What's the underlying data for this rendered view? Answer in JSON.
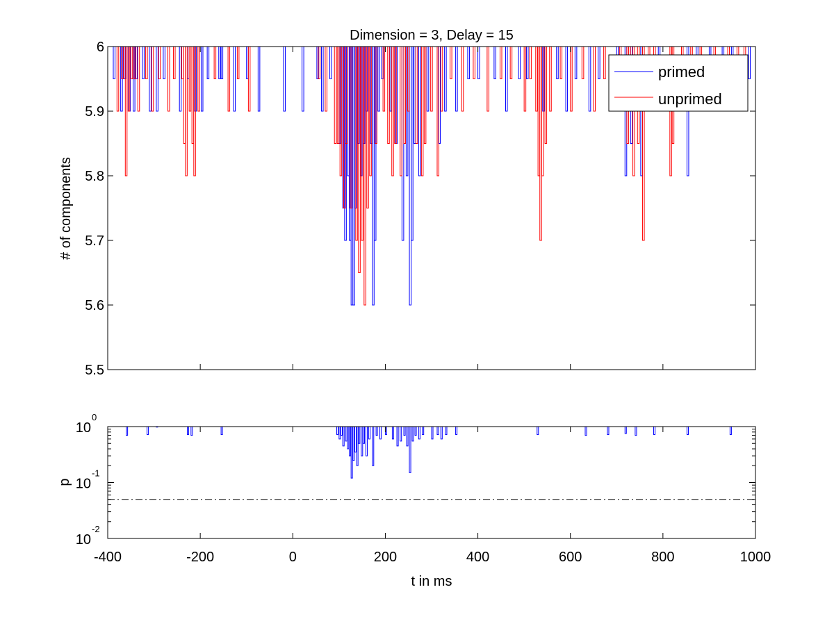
{
  "chart_data": [
    {
      "type": "line",
      "title": "Dimension  = 3, Delay = 15",
      "xlabel": "",
      "ylabel": "# of components",
      "xlim": [
        -400,
        1000
      ],
      "ylim": [
        5.5,
        6
      ],
      "yticks": [
        "5.5",
        "5.6",
        "5.7",
        "5.8",
        "5.9",
        "6"
      ],
      "legend": {
        "placement": "top-right",
        "entries": [
          "primed",
          "unprimed"
        ]
      },
      "grid": false,
      "series": [
        {
          "name": "primed",
          "color": "#0000ff",
          "style": "staircase",
          "base": 6,
          "dips": [
            {
              "x": -388,
              "y": 5.95
            },
            {
              "x": -372,
              "y": 5.9
            },
            {
              "x": -365,
              "y": 5.95
            },
            {
              "x": -355,
              "y": 5.9
            },
            {
              "x": -345,
              "y": 5.9
            },
            {
              "x": -340,
              "y": 5.95
            },
            {
              "x": -325,
              "y": 5.95
            },
            {
              "x": -310,
              "y": 5.9
            },
            {
              "x": -295,
              "y": 5.9
            },
            {
              "x": -280,
              "y": 5.95
            },
            {
              "x": -245,
              "y": 5.9
            },
            {
              "x": -228,
              "y": 5.95
            },
            {
              "x": -212,
              "y": 5.9
            },
            {
              "x": -198,
              "y": 5.9
            },
            {
              "x": -185,
              "y": 5.95
            },
            {
              "x": -160,
              "y": 5.95
            },
            {
              "x": -155,
              "y": 5.95
            },
            {
              "x": -128,
              "y": 5.9
            },
            {
              "x": -100,
              "y": 5.95
            },
            {
              "x": -75,
              "y": 5.9
            },
            {
              "x": -20,
              "y": 5.9
            },
            {
              "x": 20,
              "y": 5.9
            },
            {
              "x": 52,
              "y": 5.95
            },
            {
              "x": 62,
              "y": 5.9
            },
            {
              "x": 80,
              "y": 5.95
            },
            {
              "x": 100,
              "y": 5.85
            },
            {
              "x": 108,
              "y": 5.75
            },
            {
              "x": 112,
              "y": 5.7
            },
            {
              "x": 118,
              "y": 5.8
            },
            {
              "x": 122,
              "y": 5.7
            },
            {
              "x": 126,
              "y": 5.6
            },
            {
              "x": 130,
              "y": 5.6
            },
            {
              "x": 134,
              "y": 5.75
            },
            {
              "x": 140,
              "y": 5.85
            },
            {
              "x": 146,
              "y": 5.8
            },
            {
              "x": 152,
              "y": 5.85
            },
            {
              "x": 158,
              "y": 5.9
            },
            {
              "x": 168,
              "y": 5.85
            },
            {
              "x": 172,
              "y": 5.6
            },
            {
              "x": 176,
              "y": 5.7
            },
            {
              "x": 184,
              "y": 5.9
            },
            {
              "x": 192,
              "y": 5.95
            },
            {
              "x": 210,
              "y": 5.9
            },
            {
              "x": 222,
              "y": 5.85
            },
            {
              "x": 236,
              "y": 5.7
            },
            {
              "x": 245,
              "y": 5.8
            },
            {
              "x": 252,
              "y": 5.6
            },
            {
              "x": 256,
              "y": 5.7
            },
            {
              "x": 262,
              "y": 5.85
            },
            {
              "x": 272,
              "y": 5.8
            },
            {
              "x": 290,
              "y": 5.9
            },
            {
              "x": 315,
              "y": 5.85
            },
            {
              "x": 328,
              "y": 5.9
            },
            {
              "x": 352,
              "y": 5.9
            },
            {
              "x": 378,
              "y": 5.95
            },
            {
              "x": 400,
              "y": 5.95
            },
            {
              "x": 435,
              "y": 5.95
            },
            {
              "x": 460,
              "y": 5.9
            },
            {
              "x": 488,
              "y": 5.95
            },
            {
              "x": 505,
              "y": 5.95
            },
            {
              "x": 540,
              "y": 5.9
            },
            {
              "x": 570,
              "y": 5.95
            },
            {
              "x": 590,
              "y": 5.9
            },
            {
              "x": 610,
              "y": 5.95
            },
            {
              "x": 640,
              "y": 5.9
            },
            {
              "x": 660,
              "y": 5.95
            },
            {
              "x": 700,
              "y": 5.9
            },
            {
              "x": 718,
              "y": 5.8
            },
            {
              "x": 730,
              "y": 5.85
            },
            {
              "x": 752,
              "y": 5.8
            },
            {
              "x": 790,
              "y": 5.95
            },
            {
              "x": 852,
              "y": 5.8
            },
            {
              "x": 872,
              "y": 5.95
            },
            {
              "x": 900,
              "y": 5.95
            },
            {
              "x": 928,
              "y": 5.95
            },
            {
              "x": 948,
              "y": 5.95
            },
            {
              "x": 985,
              "y": 5.95
            }
          ]
        },
        {
          "name": "unprimed",
          "color": "#ff0000",
          "style": "staircase",
          "base": 6,
          "dips": [
            {
              "x": -380,
              "y": 5.9
            },
            {
              "x": -370,
              "y": 5.95
            },
            {
              "x": -362,
              "y": 5.8
            },
            {
              "x": -356,
              "y": 5.9
            },
            {
              "x": -350,
              "y": 5.95
            },
            {
              "x": -343,
              "y": 5.95
            },
            {
              "x": -335,
              "y": 5.9
            },
            {
              "x": -318,
              "y": 5.95
            },
            {
              "x": -305,
              "y": 5.9
            },
            {
              "x": -290,
              "y": 5.95
            },
            {
              "x": -270,
              "y": 5.9
            },
            {
              "x": -258,
              "y": 5.95
            },
            {
              "x": -240,
              "y": 5.95
            },
            {
              "x": -236,
              "y": 5.85
            },
            {
              "x": -232,
              "y": 5.8
            },
            {
              "x": -224,
              "y": 5.9
            },
            {
              "x": -218,
              "y": 5.85
            },
            {
              "x": -214,
              "y": 5.8
            },
            {
              "x": -205,
              "y": 5.9
            },
            {
              "x": -170,
              "y": 5.95
            },
            {
              "x": -140,
              "y": 5.9
            },
            {
              "x": -120,
              "y": 5.95
            },
            {
              "x": -96,
              "y": 5.9
            },
            {
              "x": 55,
              "y": 5.95
            },
            {
              "x": 70,
              "y": 5.9
            },
            {
              "x": 90,
              "y": 5.85
            },
            {
              "x": 96,
              "y": 5.85
            },
            {
              "x": 102,
              "y": 5.8
            },
            {
              "x": 110,
              "y": 5.75
            },
            {
              "x": 114,
              "y": 5.85
            },
            {
              "x": 124,
              "y": 5.75
            },
            {
              "x": 136,
              "y": 5.7
            },
            {
              "x": 142,
              "y": 5.65
            },
            {
              "x": 148,
              "y": 5.7
            },
            {
              "x": 154,
              "y": 5.6
            },
            {
              "x": 160,
              "y": 5.75
            },
            {
              "x": 166,
              "y": 5.8
            },
            {
              "x": 178,
              "y": 5.85
            },
            {
              "x": 195,
              "y": 5.9
            },
            {
              "x": 205,
              "y": 5.85
            },
            {
              "x": 214,
              "y": 5.8
            },
            {
              "x": 220,
              "y": 5.85
            },
            {
              "x": 232,
              "y": 5.8
            },
            {
              "x": 240,
              "y": 5.85
            },
            {
              "x": 248,
              "y": 5.9
            },
            {
              "x": 266,
              "y": 5.85
            },
            {
              "x": 278,
              "y": 5.8
            },
            {
              "x": 284,
              "y": 5.85
            },
            {
              "x": 298,
              "y": 5.9
            },
            {
              "x": 312,
              "y": 5.8
            },
            {
              "x": 320,
              "y": 5.9
            },
            {
              "x": 340,
              "y": 5.95
            },
            {
              "x": 365,
              "y": 5.9
            },
            {
              "x": 390,
              "y": 5.95
            },
            {
              "x": 420,
              "y": 5.9
            },
            {
              "x": 448,
              "y": 5.95
            },
            {
              "x": 470,
              "y": 5.95
            },
            {
              "x": 500,
              "y": 5.9
            },
            {
              "x": 512,
              "y": 5.95
            },
            {
              "x": 525,
              "y": 5.9
            },
            {
              "x": 530,
              "y": 5.8
            },
            {
              "x": 534,
              "y": 5.7
            },
            {
              "x": 538,
              "y": 5.8
            },
            {
              "x": 545,
              "y": 5.85
            },
            {
              "x": 555,
              "y": 5.9
            },
            {
              "x": 578,
              "y": 5.95
            },
            {
              "x": 600,
              "y": 5.9
            },
            {
              "x": 625,
              "y": 5.95
            },
            {
              "x": 650,
              "y": 5.9
            },
            {
              "x": 672,
              "y": 5.95
            },
            {
              "x": 706,
              "y": 5.9
            },
            {
              "x": 722,
              "y": 5.85
            },
            {
              "x": 726,
              "y": 5.9
            },
            {
              "x": 735,
              "y": 5.8
            },
            {
              "x": 745,
              "y": 5.85
            },
            {
              "x": 756,
              "y": 5.7
            },
            {
              "x": 768,
              "y": 5.9
            },
            {
              "x": 780,
              "y": 5.95
            },
            {
              "x": 815,
              "y": 5.8
            },
            {
              "x": 820,
              "y": 5.85
            },
            {
              "x": 840,
              "y": 5.95
            },
            {
              "x": 860,
              "y": 5.9
            },
            {
              "x": 880,
              "y": 5.95
            },
            {
              "x": 910,
              "y": 5.95
            },
            {
              "x": 940,
              "y": 5.95
            },
            {
              "x": 960,
              "y": 5.95
            },
            {
              "x": 975,
              "y": 5.9
            }
          ]
        }
      ]
    },
    {
      "type": "line",
      "title": "",
      "xlabel": "t in ms",
      "ylabel": "p",
      "xlim": [
        -400,
        1000
      ],
      "ylim": [
        0.01,
        1
      ],
      "yscale": "log",
      "xticks": [
        "-400",
        "-200",
        "0",
        "200",
        "400",
        "600",
        "800",
        "1000"
      ],
      "yticks": [
        {
          "base": "10",
          "exp": "-2"
        },
        {
          "base": "10",
          "exp": "-1"
        },
        {
          "base": "10",
          "exp": "0"
        }
      ],
      "threshold": {
        "y": 0.05,
        "style": "dash-dot",
        "color": "#000000"
      },
      "series": [
        {
          "color": "#0000ff",
          "style": "spikes",
          "base": 1,
          "points": [
            {
              "x": -360,
              "y": 0.7
            },
            {
              "x": -315,
              "y": 0.72
            },
            {
              "x": -295,
              "y": 0.98
            },
            {
              "x": -228,
              "y": 0.72
            },
            {
              "x": -220,
              "y": 0.7
            },
            {
              "x": -155,
              "y": 0.72
            },
            {
              "x": 95,
              "y": 0.72
            },
            {
              "x": 100,
              "y": 0.6
            },
            {
              "x": 104,
              "y": 0.7
            },
            {
              "x": 108,
              "y": 0.45
            },
            {
              "x": 114,
              "y": 0.55
            },
            {
              "x": 118,
              "y": 0.4
            },
            {
              "x": 122,
              "y": 0.3
            },
            {
              "x": 126,
              "y": 0.12
            },
            {
              "x": 130,
              "y": 0.25
            },
            {
              "x": 134,
              "y": 0.35
            },
            {
              "x": 138,
              "y": 0.2
            },
            {
              "x": 142,
              "y": 0.5
            },
            {
              "x": 148,
              "y": 0.3
            },
            {
              "x": 152,
              "y": 0.5
            },
            {
              "x": 158,
              "y": 0.3
            },
            {
              "x": 164,
              "y": 0.6
            },
            {
              "x": 172,
              "y": 0.2
            },
            {
              "x": 180,
              "y": 0.7
            },
            {
              "x": 188,
              "y": 0.6
            },
            {
              "x": 200,
              "y": 0.72
            },
            {
              "x": 215,
              "y": 0.6
            },
            {
              "x": 225,
              "y": 0.45
            },
            {
              "x": 232,
              "y": 0.55
            },
            {
              "x": 240,
              "y": 0.7
            },
            {
              "x": 246,
              "y": 0.45
            },
            {
              "x": 252,
              "y": 0.15
            },
            {
              "x": 258,
              "y": 0.55
            },
            {
              "x": 264,
              "y": 0.7
            },
            {
              "x": 272,
              "y": 0.6
            },
            {
              "x": 280,
              "y": 0.72
            },
            {
              "x": 300,
              "y": 0.6
            },
            {
              "x": 312,
              "y": 0.72
            },
            {
              "x": 320,
              "y": 0.6
            },
            {
              "x": 330,
              "y": 0.72
            },
            {
              "x": 352,
              "y": 0.72
            },
            {
              "x": 528,
              "y": 0.72
            },
            {
              "x": 632,
              "y": 0.7
            },
            {
              "x": 680,
              "y": 0.72
            },
            {
              "x": 718,
              "y": 0.75
            },
            {
              "x": 740,
              "y": 0.7
            },
            {
              "x": 780,
              "y": 0.72
            },
            {
              "x": 852,
              "y": 0.72
            },
            {
              "x": 945,
              "y": 0.72
            }
          ]
        }
      ]
    }
  ]
}
